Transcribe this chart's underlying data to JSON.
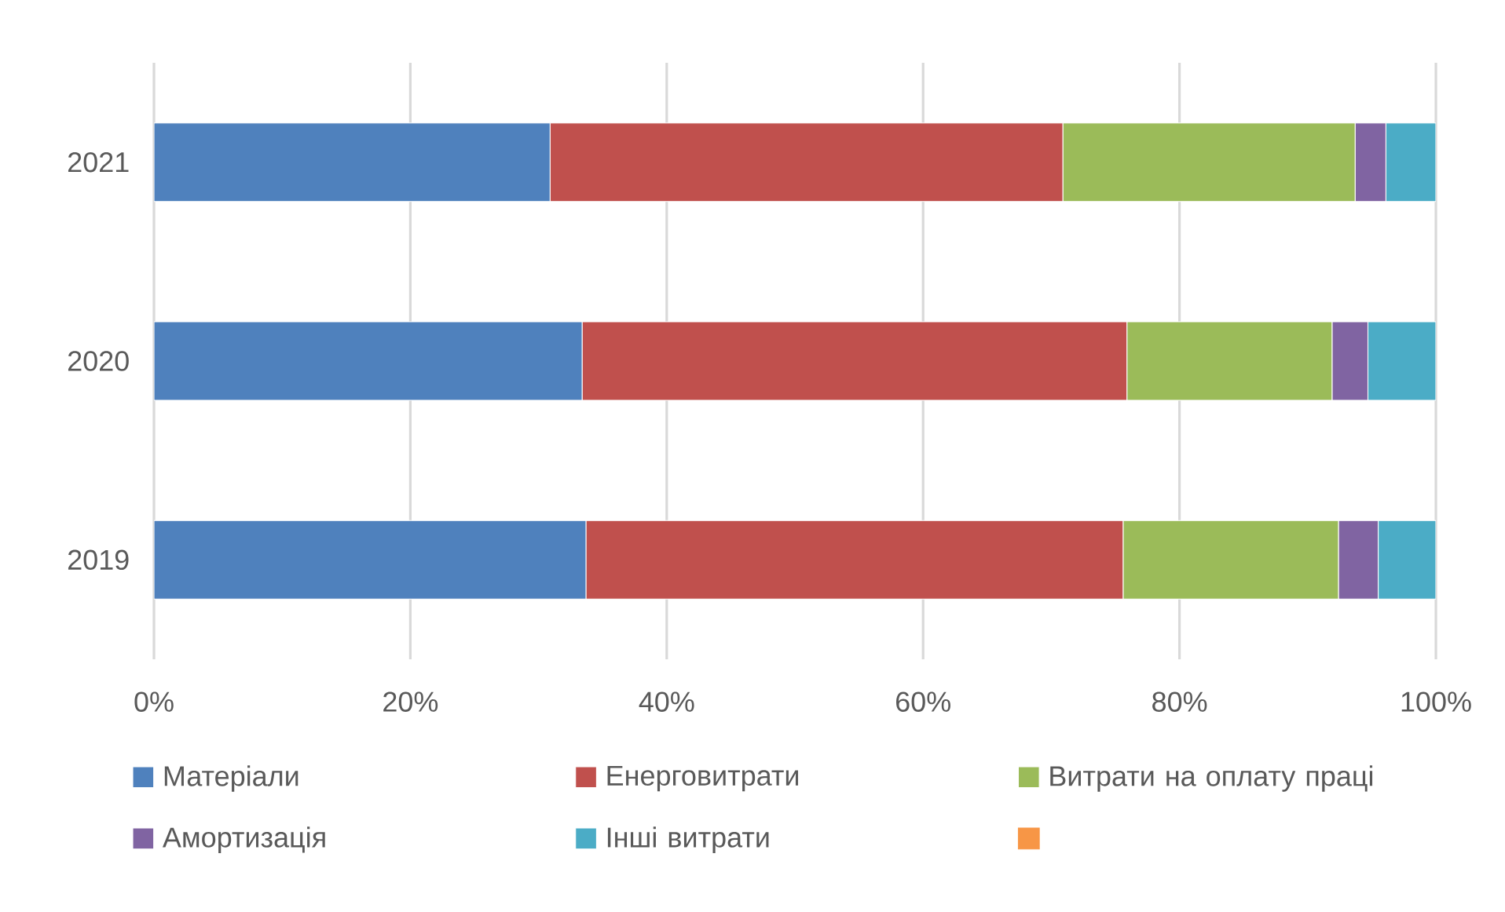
{
  "chart_data": {
    "type": "bar",
    "orientation": "horizontal",
    "stacked": true,
    "categories": [
      "2021",
      "2020",
      "2019"
    ],
    "series": [
      {
        "name": "Матеріали",
        "color": "#4f81bd",
        "values": [
          30.9,
          33.4,
          33.7
        ]
      },
      {
        "name": "Енерговитрати",
        "color": "#c0504d",
        "values": [
          40.0,
          42.5,
          41.9
        ]
      },
      {
        "name": "Витрати на оплату праці",
        "color": "#9bbb59",
        "values": [
          22.8,
          16.0,
          16.8
        ]
      },
      {
        "name": "Амортизація",
        "color": "#8064a2",
        "values": [
          2.4,
          2.8,
          3.1
        ]
      },
      {
        "name": "Інші витрати",
        "color": "#4bacc6",
        "values": [
          3.9,
          5.3,
          4.5
        ]
      },
      {
        "color": "#f79646",
        "values": [
          0,
          0,
          0
        ]
      }
    ],
    "xlim": [
      0,
      100
    ],
    "xticks": [
      {
        "value": 0,
        "label": "0%"
      },
      {
        "value": 20,
        "label": "20%"
      },
      {
        "value": 40,
        "label": "40%"
      },
      {
        "value": 60,
        "label": "60%"
      },
      {
        "value": 80,
        "label": "80%"
      },
      {
        "value": 100,
        "label": "100%"
      }
    ],
    "grid": "x",
    "legend": "bottom"
  }
}
